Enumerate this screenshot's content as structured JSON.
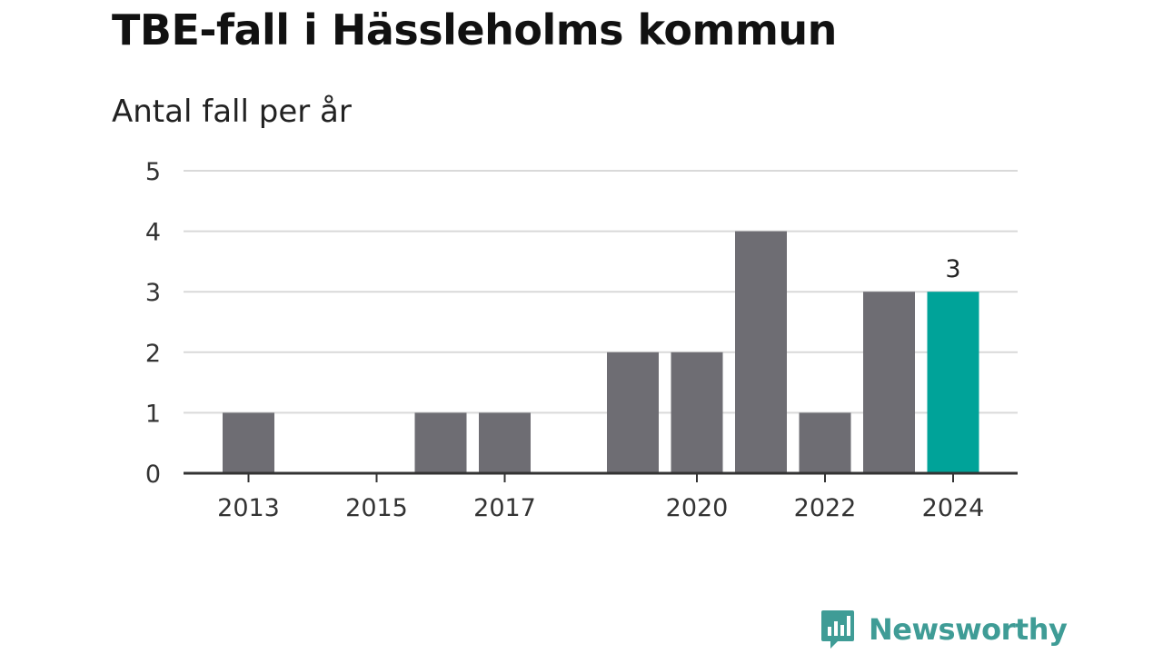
{
  "title": "TBE-fall i Hässleholms kommun",
  "subtitle": "Antal fall per år",
  "brand": {
    "name": "Newsworthy",
    "logo_icon": "bar-chart-speech-bubble-icon",
    "color": "#3f9c96"
  },
  "colors": {
    "bar": "#6e6d73",
    "highlight": "#00a399",
    "grid": "#d9d9d9",
    "axis": "#333333"
  },
  "chart_data": {
    "type": "bar",
    "title": "TBE-fall i Hässleholms kommun",
    "subtitle": "Antal fall per år",
    "xlabel": "",
    "ylabel": "",
    "x": [
      2013,
      2014,
      2015,
      2016,
      2017,
      2018,
      2019,
      2020,
      2021,
      2022,
      2023,
      2024
    ],
    "values": [
      1,
      0,
      0,
      1,
      1,
      0,
      2,
      2,
      4,
      1,
      3,
      3
    ],
    "ylim": [
      0,
      5
    ],
    "yticks": [
      0,
      1,
      2,
      3,
      4,
      5
    ],
    "xticks": [
      2013,
      2015,
      2017,
      2020,
      2022,
      2024
    ],
    "highlight_x": 2024,
    "data_labels": [
      {
        "x": 2024,
        "text": "3"
      }
    ],
    "grid": true,
    "legend": "none"
  }
}
